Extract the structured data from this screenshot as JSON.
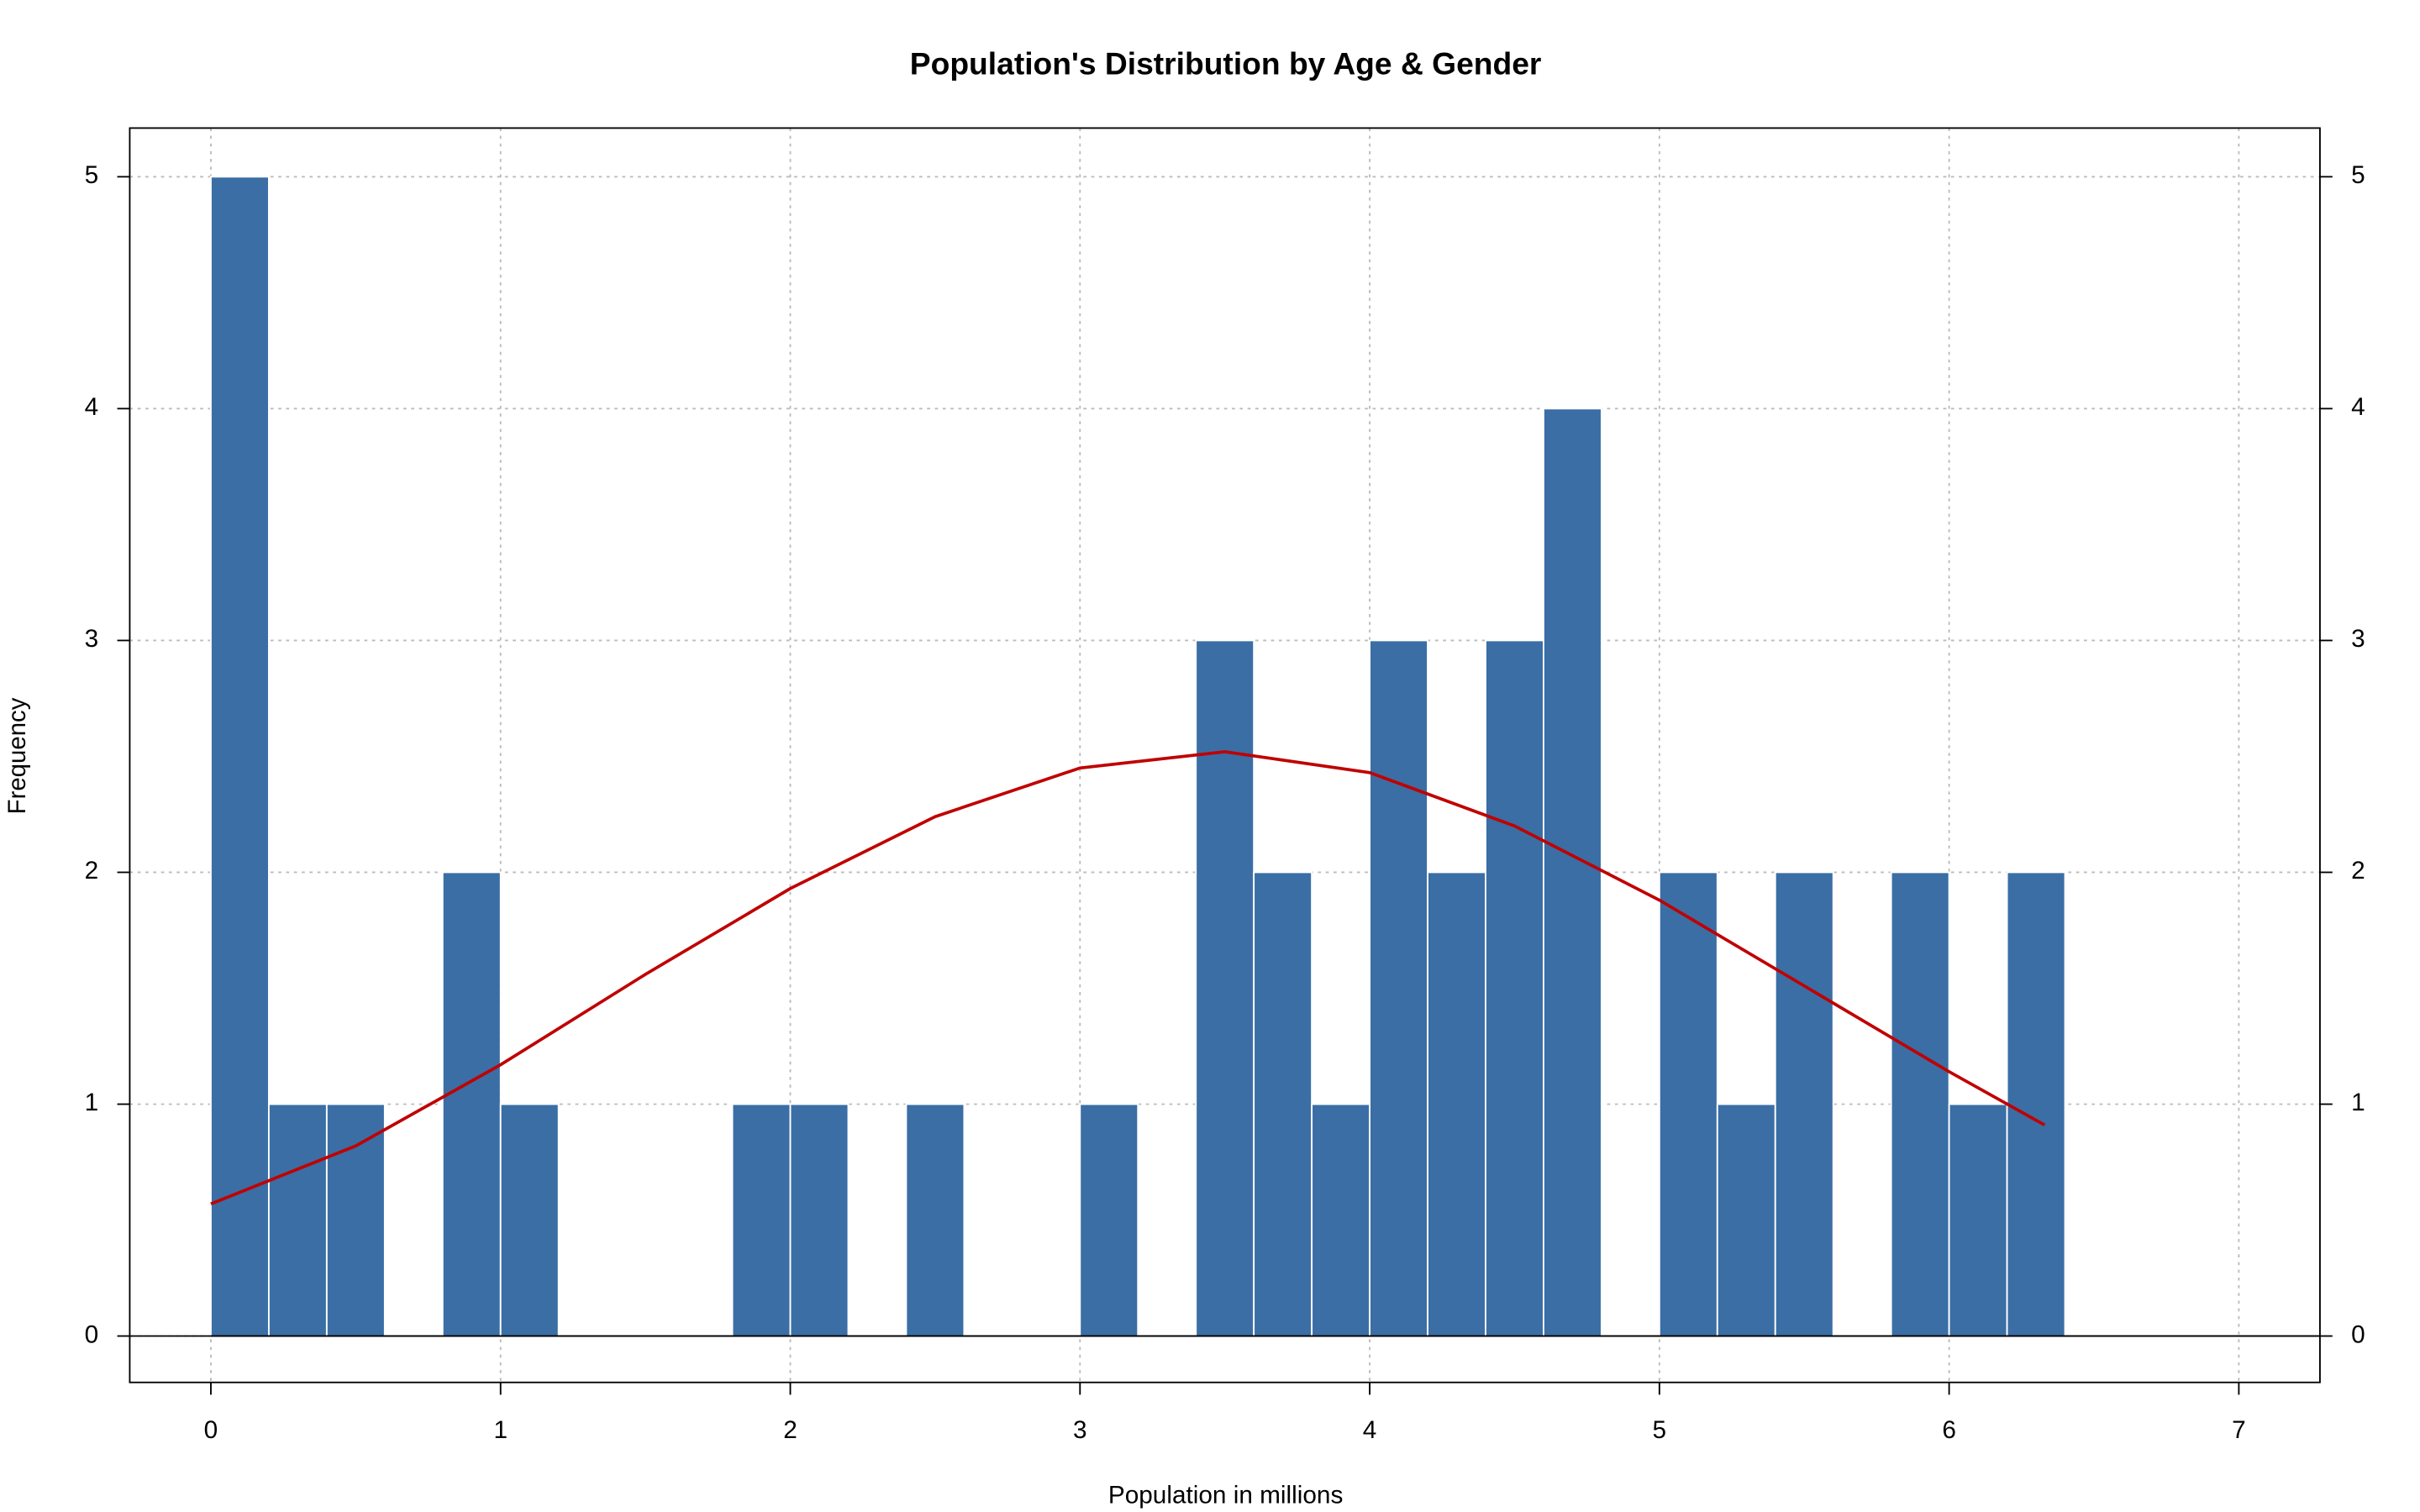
{
  "chart_data": {
    "type": "histogram",
    "title": "Population's Distribution by Age & Gender",
    "x_label": "Population in millions",
    "y_label": "Frequency",
    "bins": [
      0,
      0.2,
      0.4,
      0.6,
      0.8,
      1.0,
      1.2,
      1.4,
      1.6,
      1.8,
      2.0,
      2.2,
      2.4,
      2.6,
      2.8,
      3.0,
      3.2,
      3.4,
      3.6,
      3.8,
      4.0,
      4.2,
      4.4,
      4.6,
      4.8,
      5.0,
      5.2,
      5.4,
      5.6,
      5.8,
      6.0,
      6.2,
      6.4
    ],
    "values": [
      5,
      1,
      1,
      0,
      2,
      1,
      0,
      0,
      0,
      1,
      1,
      0,
      1,
      0,
      0,
      1,
      0,
      3,
      2,
      1,
      3,
      2,
      3,
      4,
      0,
      2,
      1,
      2,
      0,
      2,
      1,
      2
    ],
    "color": "#3a6ea5",
    "curve": {
      "color": "#c00000",
      "x": [
        0,
        0.5,
        1,
        1.5,
        2,
        2.5,
        3,
        3.5,
        4,
        4.5,
        5,
        5.5,
        6,
        6.33
      ],
      "values": [
        0.57,
        0.82,
        1.17,
        1.56,
        1.93,
        2.24,
        2.45,
        2.52,
        2.43,
        2.2,
        1.88,
        1.51,
        1.14,
        0.91
      ]
    },
    "xlim": [
      -0.28,
      7.28
    ],
    "xticks": [
      0,
      1,
      2,
      3,
      4,
      5,
      6,
      7
    ],
    "ylim": [
      -0.2,
      5.21
    ],
    "yticks": [
      0,
      1,
      2,
      3,
      4,
      5
    ],
    "grid": true
  }
}
